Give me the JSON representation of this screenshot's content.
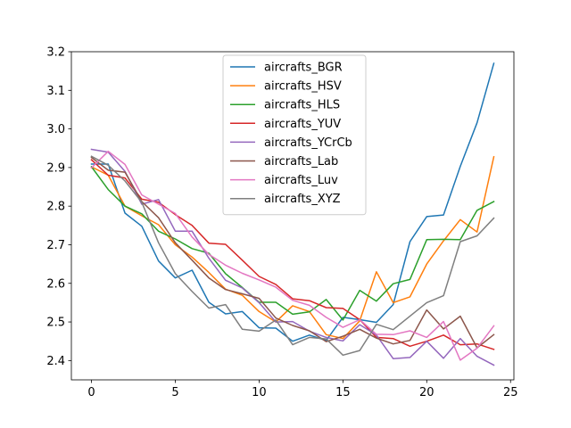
{
  "chart_data": {
    "type": "line",
    "title": "",
    "xlabel": "",
    "ylabel": "",
    "xlim": [
      -1.2,
      25.2
    ],
    "ylim": [
      2.35,
      3.2
    ],
    "xticks": [
      0,
      5,
      10,
      15,
      20,
      25
    ],
    "yticks": [
      2.4,
      2.5,
      2.6,
      2.7,
      2.8,
      2.9,
      3.0,
      3.1,
      3.2
    ],
    "grid": false,
    "legend_position": "upper-center",
    "x": [
      0,
      1,
      2,
      3,
      4,
      5,
      6,
      7,
      8,
      9,
      10,
      11,
      12,
      13,
      14,
      15,
      16,
      17,
      18,
      19,
      20,
      21,
      22,
      23,
      24
    ],
    "series": [
      {
        "name": "aircrafts_BGR",
        "color": "#1f77b4",
        "values": [
          2.909,
          2.909,
          2.782,
          2.748,
          2.658,
          2.614,
          2.634,
          2.551,
          2.521,
          2.527,
          2.485,
          2.484,
          2.45,
          2.466,
          2.452,
          2.512,
          2.506,
          2.499,
          2.545,
          2.708,
          2.773,
          2.777,
          2.903,
          3.016,
          3.17
        ]
      },
      {
        "name": "aircrafts_HSV",
        "color": "#ff7f0e",
        "values": [
          2.902,
          2.88,
          2.8,
          2.775,
          2.752,
          2.7,
          2.668,
          2.628,
          2.585,
          2.569,
          2.527,
          2.5,
          2.542,
          2.527,
          2.467,
          2.457,
          2.503,
          2.63,
          2.55,
          2.565,
          2.65,
          2.71,
          2.765,
          2.733,
          2.928
        ]
      },
      {
        "name": "aircrafts_HLS",
        "color": "#2ca02c",
        "values": [
          2.902,
          2.843,
          2.8,
          2.78,
          2.735,
          2.715,
          2.69,
          2.678,
          2.625,
          2.589,
          2.551,
          2.551,
          2.52,
          2.526,
          2.558,
          2.505,
          2.582,
          2.554,
          2.599,
          2.61,
          2.713,
          2.714,
          2.713,
          2.789,
          2.812
        ]
      },
      {
        "name": "aircrafts_YUV",
        "color": "#d62728",
        "values": [
          2.92,
          2.88,
          2.873,
          2.818,
          2.81,
          2.778,
          2.75,
          2.704,
          2.701,
          2.66,
          2.618,
          2.597,
          2.56,
          2.555,
          2.537,
          2.535,
          2.506,
          2.46,
          2.457,
          2.437,
          2.45,
          2.466,
          2.441,
          2.443,
          2.429
        ]
      },
      {
        "name": "aircrafts_YCrCb",
        "color": "#9467bd",
        "values": [
          2.947,
          2.94,
          2.89,
          2.805,
          2.817,
          2.735,
          2.735,
          2.665,
          2.608,
          2.588,
          2.55,
          2.5,
          2.501,
          2.476,
          2.46,
          2.451,
          2.493,
          2.466,
          2.405,
          2.408,
          2.45,
          2.406,
          2.457,
          2.411,
          2.388
        ]
      },
      {
        "name": "aircrafts_Lab",
        "color": "#8c564b",
        "values": [
          2.926,
          2.893,
          2.888,
          2.812,
          2.77,
          2.705,
          2.66,
          2.614,
          2.584,
          2.573,
          2.561,
          2.51,
          2.491,
          2.477,
          2.449,
          2.463,
          2.481,
          2.458,
          2.443,
          2.452,
          2.531,
          2.482,
          2.515,
          2.433,
          2.467
        ]
      },
      {
        "name": "aircrafts_Luv",
        "color": "#e377c2",
        "values": [
          2.899,
          2.942,
          2.908,
          2.829,
          2.805,
          2.781,
          2.72,
          2.675,
          2.647,
          2.626,
          2.609,
          2.59,
          2.556,
          2.543,
          2.512,
          2.486,
          2.506,
          2.468,
          2.467,
          2.477,
          2.46,
          2.501,
          2.401,
          2.432,
          2.49
        ]
      },
      {
        "name": "aircrafts_XYZ",
        "color": "#7f7f7f",
        "values": [
          2.929,
          2.906,
          2.865,
          2.81,
          2.705,
          2.625,
          2.579,
          2.536,
          2.545,
          2.481,
          2.476,
          2.505,
          2.441,
          2.46,
          2.456,
          2.414,
          2.426,
          2.494,
          2.48,
          2.515,
          2.55,
          2.568,
          2.708,
          2.723,
          2.769
        ]
      }
    ]
  }
}
